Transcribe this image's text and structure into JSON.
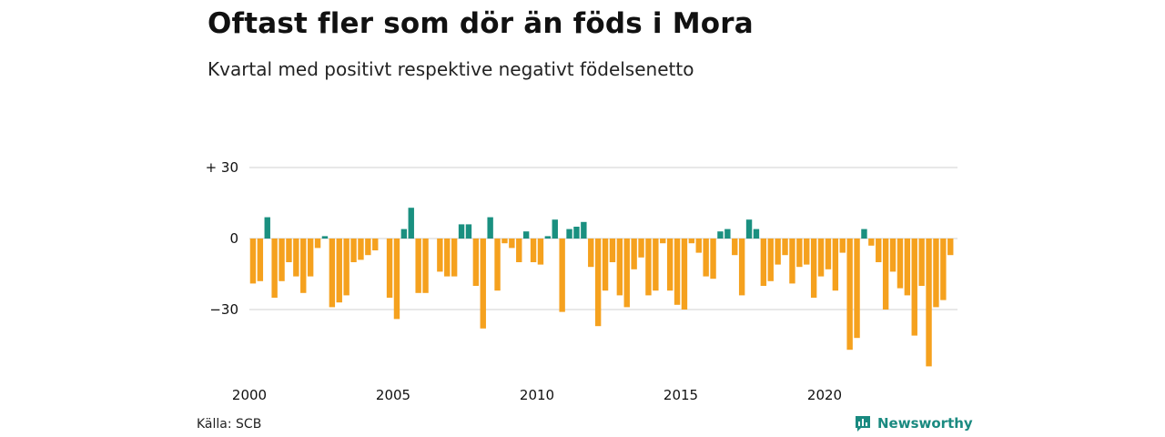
{
  "title": "Oftast fler som dör än föds i Mora",
  "subtitle": "Kvartal med positivt respektive negativt födelsenetto",
  "source": "Källa: SCB",
  "brand": "Newsworthy",
  "colors": {
    "positive": "#1a9080",
    "negative": "#f5a11e",
    "grid": "#d9d9d9",
    "brand": "#1a8a80"
  },
  "chart_data": {
    "type": "bar",
    "title": "Oftast fler som dör än föds i Mora",
    "subtitle": "Kvartal med positivt respektive negativt födelsenetto",
    "xlabel": "",
    "ylabel": "",
    "ylim": [
      -55,
      32
    ],
    "y_ticks": [
      30,
      0,
      -30
    ],
    "y_tick_labels": [
      "+ 30",
      "0",
      "−30"
    ],
    "x_tick_labels": [
      "2000",
      "2005",
      "2010",
      "2015",
      "2020"
    ],
    "x_start_year": 2000,
    "quarters_per_year": 4,
    "grid": true,
    "legend": "none",
    "values": [
      -19,
      -18,
      9,
      -25,
      -18,
      -10,
      -16,
      -23,
      -16,
      -4,
      1,
      -29,
      -27,
      -24,
      -10,
      -9,
      -7,
      -5,
      0,
      -25,
      -34,
      4,
      13,
      -23,
      -23,
      0,
      -14,
      -16,
      -16,
      6,
      6,
      -20,
      -38,
      9,
      -22,
      -2,
      -4,
      -10,
      3,
      -10,
      -11,
      1,
      8,
      -31,
      4,
      5,
      7,
      -12,
      -37,
      -22,
      -10,
      -24,
      -29,
      -13,
      -8,
      -24,
      -22,
      -2,
      -22,
      -28,
      -30,
      -2,
      -6,
      -16,
      -17,
      3,
      4,
      -7,
      -24,
      8,
      4,
      -20,
      -18,
      -11,
      -7,
      -19,
      -12,
      -11,
      -25,
      -16,
      -13,
      -22,
      -6,
      -47,
      -42,
      4,
      -3,
      -10,
      -30,
      -14,
      -21,
      -24,
      -41,
      -20,
      -54,
      -29,
      -26,
      -7
    ]
  }
}
